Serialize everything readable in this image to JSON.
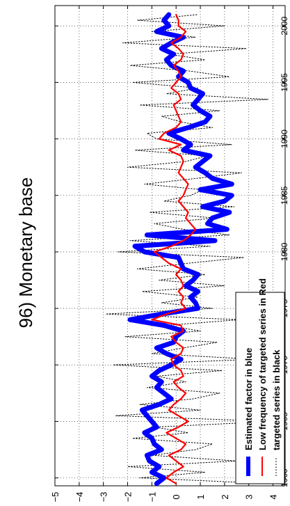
{
  "chart_data": {
    "type": "line",
    "title": "96) Monetary base",
    "xlabel": "",
    "ylabel": "",
    "xlim": [
      1959.3,
      2001.8
    ],
    "ylim": [
      -5,
      4.5
    ],
    "x_ticks": [
      1960,
      1965,
      1970,
      1975,
      1980,
      1985,
      1990,
      1995,
      2000
    ],
    "x_tick_labels": [
      "1960",
      "1965",
      "1970",
      "1975",
      "1980",
      "1985",
      "1990",
      "1995",
      "2000"
    ],
    "y_ticks": [
      -5,
      -4,
      -3,
      -2,
      -1,
      0,
      1,
      2,
      3,
      4
    ],
    "y_tick_labels": [
      "−5",
      "−4",
      "−3",
      "−2",
      "−1",
      "0",
      "1",
      "2",
      "3",
      "4"
    ],
    "grid": true,
    "orientation": "rotated 90 degrees counter-clockwise",
    "legend": {
      "placement": "lower-left",
      "entries": [
        "Estimated factor in blue",
        "Low frequency of targeted series in Red",
        "targeted series in black"
      ]
    },
    "series": [
      {
        "name": "Estimated factor in blue",
        "color": "#0000ff",
        "style": "thick-solid",
        "x": [
          1959.5,
          1960,
          1960.5,
          1961,
          1961.5,
          1962,
          1962.5,
          1963,
          1963.5,
          1964,
          1964.5,
          1965,
          1965.5,
          1966,
          1966.5,
          1967,
          1967.5,
          1968,
          1968.5,
          1969,
          1969.5,
          1970,
          1970.5,
          1971,
          1971.5,
          1972,
          1972.5,
          1973,
          1973.5,
          1974,
          1974.5,
          1975,
          1975.5,
          1976,
          1976.5,
          1977,
          1977.5,
          1978,
          1978.5,
          1979,
          1979.5,
          1980,
          1980.5,
          1981,
          1981.5,
          1982,
          1982.5,
          1983,
          1983.5,
          1984,
          1984.5,
          1985,
          1985.5,
          1986,
          1986.5,
          1987,
          1987.5,
          1988,
          1988.5,
          1989,
          1989.5,
          1990,
          1990.5,
          1991,
          1991.5,
          1992,
          1992.5,
          1993,
          1993.5,
          1994,
          1994.5,
          1995,
          1995.5,
          1996,
          1996.5,
          1997,
          1997.5,
          1998,
          1998.5,
          1999,
          1999.5,
          2000,
          2000.5,
          2001
        ],
        "values": [
          -0.8,
          -0.5,
          -1.0,
          -0.7,
          -1.1,
          -1.2,
          -0.6,
          -0.9,
          -1.0,
          -1.3,
          -0.8,
          -1.0,
          -1.2,
          -1.4,
          -0.7,
          -0.2,
          -0.5,
          -0.8,
          -0.6,
          -1.0,
          -0.7,
          -0.2,
          0.2,
          -0.4,
          -0.8,
          -0.1,
          0.0,
          0.3,
          -0.5,
          -1.9,
          -0.6,
          0.9,
          0.8,
          0.6,
          0.9,
          0.4,
          0.7,
          0.9,
          0.3,
          0.2,
          0.1,
          -1.3,
          -1.7,
          1.6,
          -1.2,
          2.1,
          1.3,
          1.5,
          2.2,
          1.1,
          2.0,
          2.3,
          1.0,
          2.3,
          1.5,
          1.2,
          0.8,
          1.1,
          1.4,
          0.3,
          0.6,
          0.2,
          -0.3,
          0.5,
          1.2,
          1.4,
          1.0,
          0.7,
          0.9,
          1.1,
          0.6,
          0.5,
          0.1,
          0.3,
          -0.2,
          -0.4,
          -0.1,
          -0.6,
          -0.2,
          0.3,
          -0.8,
          -0.3,
          -0.5,
          -0.3
        ]
      },
      {
        "name": "Low frequency of targeted series in Red",
        "color": "#ff0000",
        "style": "solid",
        "x": [
          1959.5,
          1960,
          1960.5,
          1961,
          1961.5,
          1962,
          1962.5,
          1963,
          1963.5,
          1964,
          1964.5,
          1965,
          1965.5,
          1966,
          1966.5,
          1967,
          1967.5,
          1968,
          1968.5,
          1969,
          1969.5,
          1970,
          1970.5,
          1971,
          1971.5,
          1972,
          1972.5,
          1973,
          1973.5,
          1974,
          1974.5,
          1975,
          1975.5,
          1976,
          1976.5,
          1977,
          1977.5,
          1978,
          1978.5,
          1979,
          1979.5,
          1980,
          1980.5,
          1981,
          1981.5,
          1982,
          1982.5,
          1983,
          1983.5,
          1984,
          1984.5,
          1985,
          1985.5,
          1986,
          1986.5,
          1987,
          1987.5,
          1988,
          1988.5,
          1989,
          1989.5,
          1990,
          1990.5,
          1991,
          1991.5,
          1992,
          1992.5,
          1993,
          1993.5,
          1994,
          1994.5,
          1995,
          1995.5,
          1996,
          1996.5,
          1997,
          1997.5,
          1998,
          1998.5,
          1999,
          1999.5,
          2000,
          2000.5,
          2001
        ],
        "values": [
          0.0,
          -0.4,
          -0.1,
          0.3,
          0.0,
          -0.3,
          0.2,
          0.4,
          0.0,
          -0.4,
          0.1,
          0.5,
          0.1,
          -0.3,
          -0.1,
          0.2,
          0.4,
          0.1,
          -0.1,
          0.3,
          0.2,
          -0.1,
          -0.2,
          0.2,
          0.3,
          0.0,
          -0.2,
          0.3,
          0.2,
          -1.0,
          -0.4,
          0.4,
          0.2,
          0.3,
          0.1,
          0.3,
          0.2,
          0.0,
          0.2,
          -0.3,
          -0.6,
          -0.9,
          -0.2,
          0.3,
          0.6,
          0.8,
          0.6,
          0.4,
          0.5,
          0.3,
          0.1,
          0.3,
          0.4,
          0.5,
          0.3,
          0.1,
          0.2,
          0.3,
          0.2,
          -0.3,
          0.2,
          -0.7,
          -0.5,
          0.0,
          0.2,
          0.1,
          0.0,
          -0.1,
          0.2,
          0.1,
          -0.2,
          0.0,
          0.2,
          0.1,
          -0.1,
          0.2,
          0.3,
          0.1,
          -0.2,
          0.2,
          0.4,
          0.1,
          0.1,
          0.0
        ]
      },
      {
        "name": "targeted series in black",
        "color": "#000000",
        "style": "dotted",
        "x": [
          1959.5,
          1960,
          1960.5,
          1961,
          1961.5,
          1962,
          1962.5,
          1963,
          1963.5,
          1964,
          1964.5,
          1965,
          1965.5,
          1966,
          1966.5,
          1967,
          1967.5,
          1968,
          1968.5,
          1969,
          1969.5,
          1970,
          1970.5,
          1971,
          1971.5,
          1972,
          1972.5,
          1973,
          1973.5,
          1974,
          1974.5,
          1975,
          1975.5,
          1976,
          1976.5,
          1977,
          1977.5,
          1978,
          1978.5,
          1979,
          1979.5,
          1980,
          1980.5,
          1981,
          1981.5,
          1982,
          1982.5,
          1983,
          1983.5,
          1984,
          1984.5,
          1985,
          1985.5,
          1986,
          1986.5,
          1987,
          1987.5,
          1988,
          1988.5,
          1989,
          1989.5,
          1990,
          1990.5,
          1991,
          1991.5,
          1992,
          1992.5,
          1993,
          1993.5,
          1994,
          1994.5,
          1995,
          1995.5,
          1996,
          1996.5,
          1997,
          1997.5,
          1998,
          1998.5,
          1999,
          1999.5,
          2000,
          2000.5,
          2001
        ],
        "values": [
          3.8,
          -1.5,
          1.2,
          -2.0,
          2.5,
          -1.0,
          0.8,
          1.5,
          -1.8,
          0.5,
          -0.9,
          4.0,
          -2.5,
          1.0,
          -1.5,
          0.7,
          1.8,
          -1.2,
          0.4,
          -0.8,
          1.9,
          -2.6,
          3.2,
          -1.0,
          0.3,
          1.7,
          -2.1,
          1.0,
          -0.4,
          2.6,
          -2.9,
          1.5,
          -0.6,
          0.9,
          -1.4,
          2.0,
          -0.7,
          1.2,
          -1.6,
          0.5,
          2.8,
          -2.4,
          1.4,
          -1.9,
          2.2,
          0.3,
          -0.9,
          1.6,
          -1.1,
          2.4,
          -0.5,
          0.6,
          1.1,
          -1.3,
          0.8,
          2.7,
          -2.0,
          0.4,
          1.3,
          -1.7,
          2.3,
          -0.8,
          -1.2,
          1.5,
          0.2,
          -0.6,
          1.8,
          -1.5,
          3.8,
          -0.4,
          0.9,
          -1.8,
          2.2,
          0.6,
          -1.9,
          1.2,
          -0.3,
          2.9,
          -2.2,
          0.8,
          -1.0,
          2.0,
          -1.6,
          0.9
        ]
      }
    ]
  }
}
